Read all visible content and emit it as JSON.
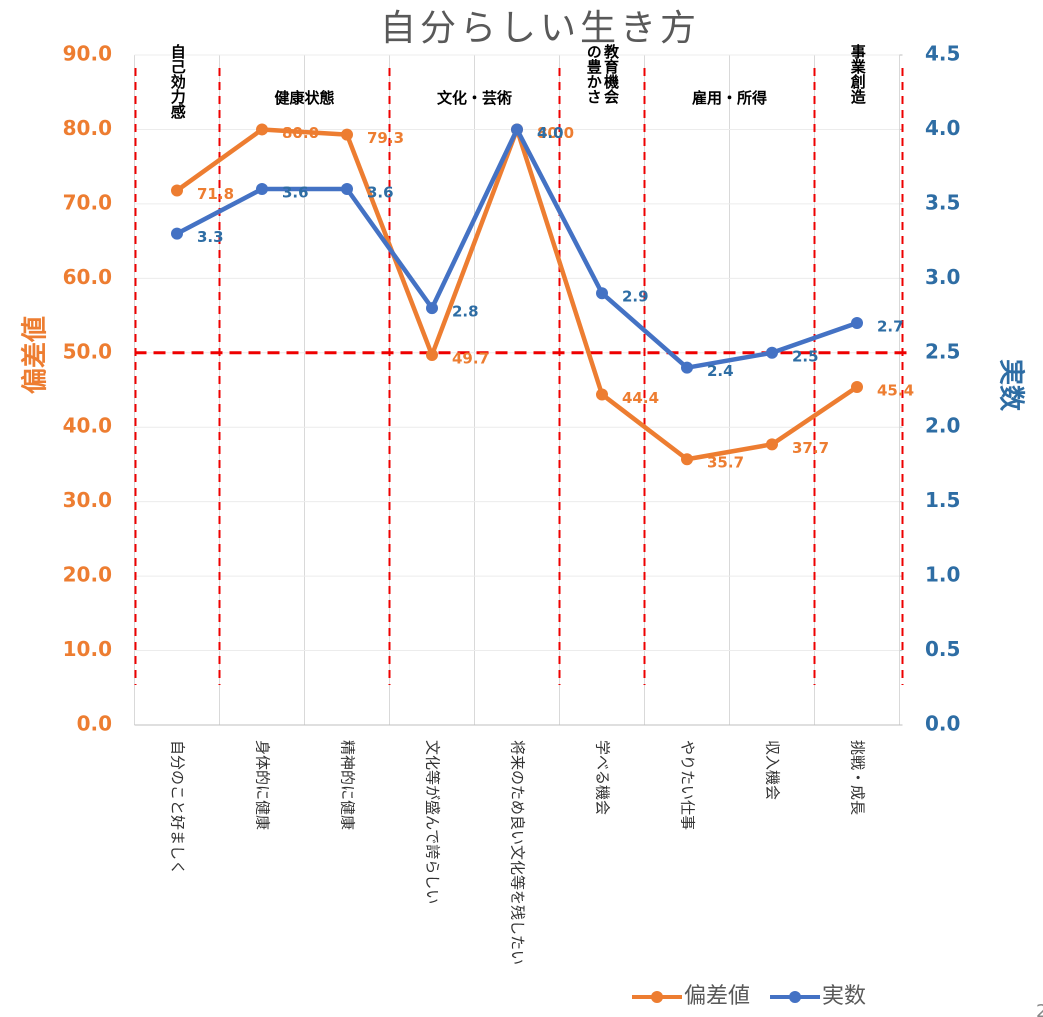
{
  "chart_data": {
    "type": "line",
    "title": "自分らしい生き方",
    "categories": [
      "自分のこと好ましく",
      "身体的に健康",
      "精神的に健康",
      "文化等が盛んで誇らしい",
      "将来のため良い文化等を残したい",
      "学べる機会",
      "やりたい仕事",
      "収入機会",
      "挑戦・成長"
    ],
    "groups": [
      "自己効力感",
      "健康状態",
      "文化・芸術",
      "教育機会の豊かさ",
      "雇用・所得",
      "事業創造"
    ],
    "series": [
      {
        "name": "偏差値",
        "color": "#ed7d31",
        "values": [
          71.8,
          80.0,
          79.3,
          49.7,
          80.0,
          44.4,
          35.7,
          37.7,
          45.4
        ],
        "value_labels": [
          "71.8",
          "80.0",
          "79.3",
          "49.7",
          "80.0",
          "44.4",
          "35.7",
          "37.7",
          "45.4"
        ]
      },
      {
        "name": "実数",
        "color": "#4472c4",
        "axis": "y2",
        "values": [
          3.3,
          3.6,
          3.6,
          2.8,
          4.0,
          2.9,
          2.4,
          2.5,
          2.7
        ],
        "value_labels": [
          "3.3",
          "3.6",
          "3.6",
          "2.8",
          "4.0",
          "2.9",
          "2.4",
          "2.5",
          "2.7"
        ]
      }
    ],
    "ylabel": "偏差値",
    "y2label": "実数",
    "ylim": [
      0,
      90
    ],
    "yticks": [
      {
        "value": 0,
        "label": "0.0"
      },
      {
        "value": 10,
        "label": "10.0"
      },
      {
        "value": 20,
        "label": "20.0"
      },
      {
        "value": 30,
        "label": "30.0"
      },
      {
        "value": 40,
        "label": "40.0"
      },
      {
        "value": 50,
        "label": "50.0"
      },
      {
        "value": 60,
        "label": "60.0"
      },
      {
        "value": 70,
        "label": "70.0"
      },
      {
        "value": 80,
        "label": "80.0"
      },
      {
        "value": 90,
        "label": "90.0"
      }
    ],
    "y2lim": [
      0,
      4.5
    ],
    "y2ticks": [
      {
        "value": 0,
        "label": "0.0"
      },
      0.5,
      {
        "value": 1,
        "label": "1.0"
      },
      1.5,
      {
        "value": 2,
        "label": "2.0"
      },
      2.5,
      {
        "value": 3,
        "label": "3.0"
      },
      3.5,
      {
        "value": 4,
        "label": "4.0"
      },
      4.5
    ],
    "reference_line": 50,
    "legend": "bottom-right",
    "page_number": "2"
  }
}
